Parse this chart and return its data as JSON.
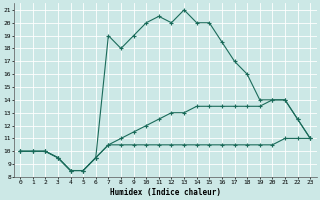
{
  "xlabel": "Humidex (Indice chaleur)",
  "xlim": [
    -0.5,
    23.5
  ],
  "ylim": [
    8,
    21.5
  ],
  "xticks": [
    0,
    1,
    2,
    3,
    4,
    5,
    6,
    7,
    8,
    9,
    10,
    11,
    12,
    13,
    14,
    15,
    16,
    17,
    18,
    19,
    20,
    21,
    22,
    23
  ],
  "yticks": [
    8,
    9,
    10,
    11,
    12,
    13,
    14,
    15,
    16,
    17,
    18,
    19,
    20,
    21
  ],
  "bg_color": "#cce8e6",
  "grid_color": "#b0d8d5",
  "line_color": "#1a6b5a",
  "line1_x": [
    0,
    1,
    2,
    3,
    4,
    5,
    6,
    7,
    8,
    9,
    10,
    11,
    12,
    13,
    14,
    15,
    16,
    17,
    18,
    19,
    20,
    21,
    22,
    23
  ],
  "line1_y": [
    10,
    10,
    10,
    9.5,
    8.5,
    8.5,
    9.5,
    10.5,
    10.5,
    10.5,
    10.5,
    10.5,
    10.5,
    10.5,
    10.5,
    10.5,
    10.5,
    10.5,
    10.5,
    10.5,
    10.5,
    11,
    11,
    11
  ],
  "line2_x": [
    0,
    1,
    2,
    3,
    4,
    5,
    6,
    7,
    8,
    9,
    10,
    11,
    12,
    13,
    14,
    15,
    16,
    17,
    18,
    19,
    20,
    21,
    22,
    23
  ],
  "line2_y": [
    10,
    10,
    10,
    9.5,
    8.5,
    8.5,
    9.5,
    10.5,
    11,
    11.5,
    12,
    12.5,
    13,
    13,
    13.5,
    13.5,
    13.5,
    13.5,
    13.5,
    13.5,
    14,
    14,
    12.5,
    11
  ],
  "line3_x": [
    0,
    1,
    2,
    3,
    4,
    5,
    6,
    7,
    8,
    9,
    10,
    11,
    12,
    13,
    14,
    15,
    16,
    17,
    18,
    19,
    20,
    21,
    22,
    23
  ],
  "line3_y": [
    10,
    10,
    10,
    9.5,
    8.5,
    8.5,
    9.5,
    19,
    18,
    19,
    20,
    20.5,
    20,
    21,
    20,
    20,
    18.5,
    17,
    16,
    14,
    14,
    14,
    12.5,
    11
  ]
}
